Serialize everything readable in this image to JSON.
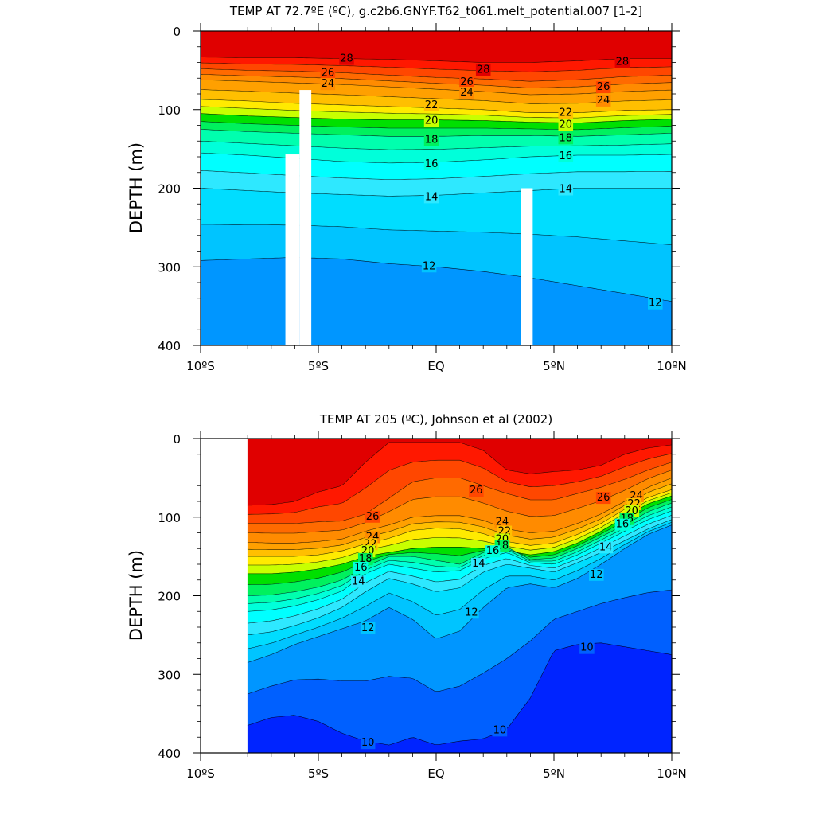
{
  "chart_data": [
    {
      "type": "contour",
      "title": "TEMP AT  72.7ºE (ºC), g.c2b6.GNYF.T62_t061.melt_potential.007 [1-2]",
      "ylabel": "DEPTH (m)",
      "xlabel": "",
      "xlim": [
        -10,
        10
      ],
      "ylim": [
        400,
        0
      ],
      "x_ticks": [
        -10,
        -5,
        0,
        5,
        10
      ],
      "x_tick_labels": [
        "10ºS",
        "5ºS",
        "EQ",
        "5ºN",
        "10ºN"
      ],
      "y_ticks": [
        0,
        100,
        200,
        300,
        400
      ],
      "y_tick_labels": [
        "0",
        "100",
        "200",
        "300",
        "400"
      ],
      "isotherms": [
        {
          "temp": 28,
          "depth": [
            33,
            34,
            34,
            35,
            36,
            38,
            40,
            40,
            38,
            35,
            35
          ]
        },
        {
          "temp": 26,
          "depth": [
            48,
            50,
            51,
            53,
            56,
            59,
            61,
            64,
            62,
            58,
            56
          ]
        },
        {
          "temp": 24,
          "depth": [
            62,
            64,
            66,
            68,
            71,
            74,
            77,
            81,
            80,
            77,
            75
          ]
        },
        {
          "temp": 22,
          "depth": [
            87,
            89,
            92,
            94,
            96,
            98,
            100,
            104,
            104,
            101,
            100
          ]
        },
        {
          "temp": 20,
          "depth": [
            105,
            108,
            110,
            112,
            113,
            113,
            114,
            116,
            117,
            114,
            112
          ]
        },
        {
          "temp": 18,
          "depth": [
            125,
            128,
            130,
            132,
            134,
            134,
            133,
            133,
            134,
            132,
            130
          ]
        },
        {
          "temp": 16,
          "depth": [
            155,
            158,
            162,
            166,
            168,
            167,
            164,
            160,
            158,
            158,
            157
          ]
        },
        {
          "temp": 14,
          "depth": [
            200,
            203,
            206,
            208,
            210,
            209,
            206,
            203,
            200,
            200,
            200
          ]
        },
        {
          "temp": 12,
          "depth": [
            292,
            290,
            288,
            290,
            296,
            300,
            306,
            314,
            324,
            334,
            344
          ]
        }
      ],
      "isotherm_x": [
        -10,
        -8,
        -6,
        -4,
        -2,
        0,
        2,
        4,
        6,
        8,
        10
      ],
      "labels": [
        {
          "text": "28",
          "x": -3.8,
          "y": 34
        },
        {
          "text": "28",
          "x": 2.0,
          "y": 48
        },
        {
          "text": "28",
          "x": 7.9,
          "y": 38
        },
        {
          "text": "26",
          "x": -4.6,
          "y": 52
        },
        {
          "text": "26",
          "x": 1.3,
          "y": 64
        },
        {
          "text": "26",
          "x": 7.1,
          "y": 70
        },
        {
          "text": "24",
          "x": -4.6,
          "y": 66
        },
        {
          "text": "24",
          "x": 1.3,
          "y": 77
        },
        {
          "text": "24",
          "x": 7.1,
          "y": 87
        },
        {
          "text": "22",
          "x": -0.2,
          "y": 93
        },
        {
          "text": "22",
          "x": 5.5,
          "y": 103
        },
        {
          "text": "20",
          "x": -0.2,
          "y": 113
        },
        {
          "text": "20",
          "x": 5.5,
          "y": 118
        },
        {
          "text": "18",
          "x": -0.2,
          "y": 137
        },
        {
          "text": "18",
          "x": 5.5,
          "y": 135
        },
        {
          "text": "16",
          "x": -0.2,
          "y": 168
        },
        {
          "text": "16",
          "x": 5.5,
          "y": 158
        },
        {
          "text": "14",
          "x": -0.2,
          "y": 210
        },
        {
          "text": "14",
          "x": 5.5,
          "y": 200
        },
        {
          "text": "12",
          "x": -0.3,
          "y": 298
        },
        {
          "text": "12",
          "x": 9.3,
          "y": 345
        }
      ],
      "missing_columns": [
        {
          "x0": -6.4,
          "x1": -5.8,
          "top": 157,
          "bottom": 400
        },
        {
          "x0": -5.8,
          "x1": -5.3,
          "top": 75,
          "bottom": 400
        },
        {
          "x0": 3.6,
          "x1": 4.1,
          "top": 200,
          "bottom": 400
        }
      ]
    },
    {
      "type": "contour",
      "title": "TEMP AT 205 (ºC), Johnson et al (2002)",
      "ylabel": "DEPTH (m)",
      "xlabel": "",
      "xlim": [
        -10,
        10
      ],
      "ylim": [
        400,
        0
      ],
      "data_start_x": -8,
      "x_ticks": [
        -10,
        -5,
        0,
        5,
        10
      ],
      "x_tick_labels": [
        "10ºS",
        "5ºS",
        "EQ",
        "5ºN",
        "10ºN"
      ],
      "y_ticks": [
        0,
        100,
        200,
        300,
        400
      ],
      "y_tick_labels": [
        "0",
        "100",
        "200",
        "300",
        "400"
      ],
      "isotherm_x": [
        -8,
        -7,
        -6,
        -5,
        -4,
        -3,
        -2,
        -1,
        0,
        1,
        2,
        3,
        4,
        5,
        6,
        7,
        8,
        9,
        10
      ],
      "isotherms": [
        {
          "temp": 28,
          "depth": [
            85,
            84,
            80,
            68,
            60,
            30,
            5,
            5,
            5,
            5,
            15,
            40,
            45,
            42,
            40,
            34,
            20,
            12,
            8
          ]
        },
        {
          "temp": 26,
          "depth": [
            108,
            108,
            108,
            106,
            105,
            96,
            76,
            55,
            50,
            50,
            60,
            70,
            78,
            78,
            70,
            62,
            52,
            40,
            30
          ]
        },
        {
          "temp": 24,
          "depth": [
            132,
            133,
            133,
            131,
            128,
            118,
            110,
            100,
            98,
            98,
            104,
            115,
            120,
            118,
            108,
            96,
            80,
            62,
            50
          ]
        },
        {
          "temp": 22,
          "depth": [
            150,
            150,
            150,
            148,
            143,
            134,
            127,
            117,
            114,
            115,
            121,
            131,
            136,
            133,
            122,
            108,
            90,
            75,
            65
          ]
        },
        {
          "temp": 20,
          "depth": [
            172,
            172,
            170,
            166,
            160,
            150,
            145,
            140,
            138,
            138,
            140,
            143,
            148,
            144,
            133,
            118,
            100,
            83,
            73
          ]
        },
        {
          "temp": 18,
          "depth": [
            200,
            199,
            195,
            189,
            180,
            163,
            150,
            150,
            155,
            160,
            145,
            138,
            154,
            152,
            140,
            125,
            110,
            93,
            82
          ]
        },
        {
          "temp": 16,
          "depth": [
            220,
            218,
            213,
            205,
            194,
            172,
            160,
            165,
            170,
            168,
            153,
            145,
            158,
            160,
            148,
            133,
            118,
            103,
            92
          ]
        },
        {
          "temp": 14,
          "depth": [
            250,
            246,
            238,
            228,
            215,
            195,
            178,
            185,
            195,
            190,
            170,
            160,
            165,
            170,
            158,
            145,
            130,
            115,
            103
          ]
        },
        {
          "temp": 12,
          "depth": [
            285,
            275,
            262,
            252,
            242,
            232,
            215,
            230,
            255,
            245,
            215,
            190,
            185,
            190,
            178,
            160,
            140,
            122,
            110
          ]
        },
        {
          "temp": 10,
          "depth": [
            365,
            355,
            352,
            360,
            375,
            385,
            390,
            380,
            390,
            385,
            382,
            370,
            330,
            270,
            262,
            260,
            265,
            270,
            275
          ]
        }
      ],
      "labels": [
        {
          "text": "26",
          "x": -2.7,
          "y": 98
        },
        {
          "text": "26",
          "x": 1.7,
          "y": 65
        },
        {
          "text": "24",
          "x": -2.7,
          "y": 124
        },
        {
          "text": "24",
          "x": 2.8,
          "y": 105
        },
        {
          "text": "22",
          "x": -2.8,
          "y": 133
        },
        {
          "text": "22",
          "x": 2.9,
          "y": 117
        },
        {
          "text": "20",
          "x": -2.9,
          "y": 142
        },
        {
          "text": "20",
          "x": 2.8,
          "y": 127
        },
        {
          "text": "18",
          "x": -3.0,
          "y": 152
        },
        {
          "text": "18",
          "x": 2.8,
          "y": 135
        },
        {
          "text": "16",
          "x": -3.2,
          "y": 163
        },
        {
          "text": "16",
          "x": 2.4,
          "y": 142
        },
        {
          "text": "14",
          "x": -3.3,
          "y": 181
        },
        {
          "text": "14",
          "x": 1.8,
          "y": 158
        },
        {
          "text": "12",
          "x": -2.9,
          "y": 240
        },
        {
          "text": "12",
          "x": 1.5,
          "y": 220
        },
        {
          "text": "12",
          "x": 6.8,
          "y": 172
        },
        {
          "text": "10",
          "x": -2.9,
          "y": 386
        },
        {
          "text": "10",
          "x": 2.7,
          "y": 370
        },
        {
          "text": "10",
          "x": 6.4,
          "y": 265
        },
        {
          "text": "24",
          "x": 8.5,
          "y": 72
        },
        {
          "text": "22",
          "x": 8.4,
          "y": 82
        },
        {
          "text": "20",
          "x": 8.3,
          "y": 91
        },
        {
          "text": "18",
          "x": 8.1,
          "y": 101
        },
        {
          "text": "16",
          "x": 7.9,
          "y": 108
        },
        {
          "text": "14",
          "x": 7.2,
          "y": 137
        },
        {
          "text": "26",
          "x": 7.1,
          "y": 74
        }
      ]
    }
  ],
  "colors": {
    "levels": [
      {
        "min": 28,
        "color": "#e00000"
      },
      {
        "min": 27,
        "color": "#ff1800"
      },
      {
        "min": 26,
        "color": "#ff4700"
      },
      {
        "min": 25,
        "color": "#ff6a00"
      },
      {
        "min": 24,
        "color": "#ff8b00"
      },
      {
        "min": 23,
        "color": "#ffa000"
      },
      {
        "min": 22,
        "color": "#ffbf00"
      },
      {
        "min": 21,
        "color": "#ffea00"
      },
      {
        "min": 20,
        "color": "#c8ff00"
      },
      {
        "min": 19,
        "color": "#00e000"
      },
      {
        "min": 18,
        "color": "#00f15e"
      },
      {
        "min": 17,
        "color": "#00ffae"
      },
      {
        "min": 16,
        "color": "#00ffda"
      },
      {
        "min": 15,
        "color": "#00ffff"
      },
      {
        "min": 14,
        "color": "#2ee8ff"
      },
      {
        "min": 13,
        "color": "#00ddff"
      },
      {
        "min": 12,
        "color": "#00c4ff"
      },
      {
        "min": 11,
        "color": "#0096ff"
      },
      {
        "min": 10,
        "color": "#0060ff"
      },
      {
        "min": 0,
        "color": "#0024ff"
      }
    ],
    "deep_top": "#0024f0"
  }
}
